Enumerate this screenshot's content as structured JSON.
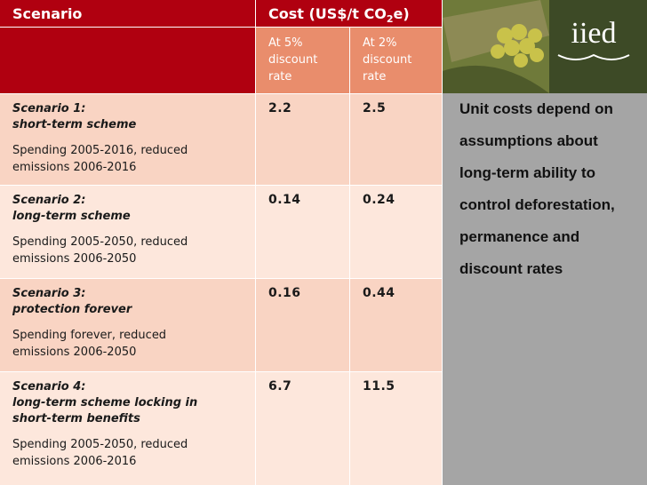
{
  "table": {
    "header": {
      "scenario": "Scenario",
      "cost_pre": "Cost (US$/t CO",
      "cost_sub": "2",
      "cost_post": "e)"
    },
    "subheader": [
      "At 5%\ndiscount\nrate",
      "At 2%\ndiscount\nrate"
    ],
    "rows": [
      {
        "name": "Scenario 1:\nshort-term scheme",
        "description": "Spending 2005-2016, reduced\nemissions 2006-2016",
        "values": [
          "2.2",
          "2.5"
        ]
      },
      {
        "name": "Scenario 2:\nlong-term scheme",
        "description": "Spending 2005-2050, reduced\nemissions 2006-2050",
        "values": [
          "0.14",
          "0.24"
        ]
      },
      {
        "name": "Scenario 3:\nprotection forever",
        "description": "Spending forever, reduced\nemissions 2006-2050",
        "values": [
          "0.16",
          "0.44"
        ]
      },
      {
        "name": "Scenario 4:\nlong-term scheme locking in\nshort-term benefits",
        "description": "Spending 2005-2050, reduced\nemissions 2006-2016",
        "values": [
          "6.7",
          "11.5"
        ]
      }
    ]
  },
  "logo": "iied",
  "side_text": "Unit costs depend on assumptions about long-term ability to control deforestation, permanence and discount rates"
}
